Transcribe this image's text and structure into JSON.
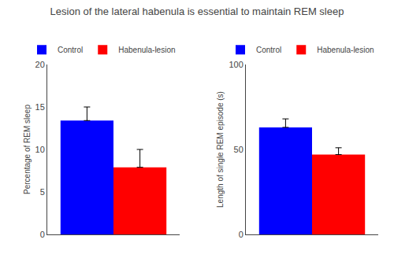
{
  "chart_data": [
    {
      "type": "bar",
      "title": "Lesion of the lateral habenula is essential to maintain REM sleep",
      "ylabel": "Percentage of REM sleep",
      "categories": [
        null
      ],
      "series": [
        {
          "name": "Control",
          "color": "#0000FF",
          "values": [
            13.4
          ],
          "errors": [
            1.6
          ]
        },
        {
          "name": "Habenula-lesion",
          "color": "#FF0000",
          "values": [
            7.9
          ],
          "errors": [
            2.1
          ]
        }
      ],
      "ylim": [
        0,
        20
      ],
      "yticks": [
        0,
        5,
        10,
        15,
        20
      ],
      "grid": false,
      "legend": "upper right",
      "tick_labels": "y"
    },
    {
      "type": "bar",
      "ylabel": "Length of single REM episode (s)",
      "categories": [
        null
      ],
      "series": [
        {
          "name": "Control",
          "color": "#0000FF",
          "values": [
            63
          ],
          "errors": [
            5
          ]
        },
        {
          "name": "Habenula-lesion",
          "color": "#FF0000",
          "values": [
            47
          ],
          "errors": [
            4
          ]
        }
      ],
      "ylim": [
        0,
        100
      ],
      "yticks": [
        0,
        50,
        100
      ],
      "grid": false,
      "legend": "upper right",
      "tick_labels": "y"
    }
  ]
}
